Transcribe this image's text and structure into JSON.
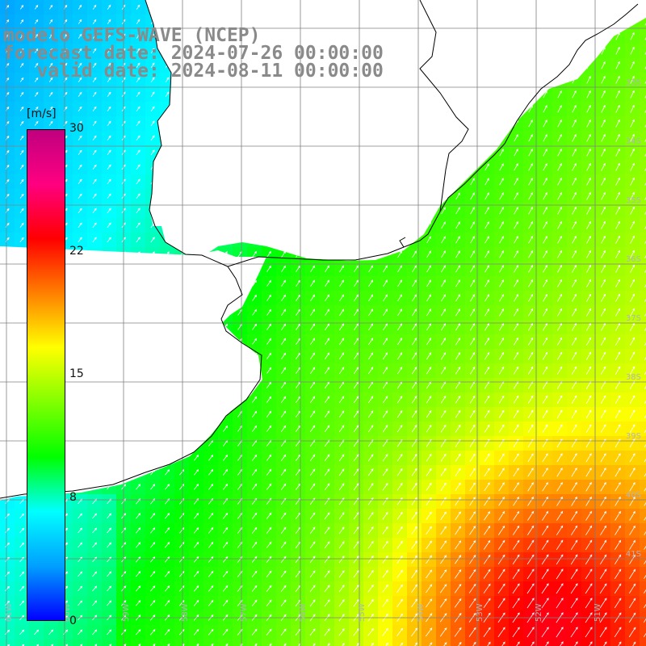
{
  "header": {
    "model_line": "modelo GEFS-WAVE (NCEP)",
    "forecast_line": "forecast date: 2024-07-26 00:00:00",
    "valid_line": "   valid date: 2024-08-11 00:00:00"
  },
  "colorbar": {
    "unit": "[m/s]",
    "ticks": [
      "30",
      "22",
      "15",
      "8",
      "0"
    ],
    "tick_values": [
      30,
      22,
      15,
      8,
      0
    ],
    "min": 0,
    "max": 30,
    "colors": [
      "#0000ff",
      "#00a0ff",
      "#00ffff",
      "#00ff00",
      "#80ff00",
      "#ffff00",
      "#ff8000",
      "#ff0000",
      "#ff0080",
      "#c0007f"
    ]
  },
  "map": {
    "variable": "wind speed and direction",
    "lat_labels": [
      "33S",
      "34S",
      "35S",
      "36S",
      "37S",
      "38S",
      "39S",
      "40S",
      "41S"
    ],
    "lon_labels": [
      "61W",
      "60W",
      "59W",
      "58W",
      "57W",
      "56W",
      "55W",
      "54W",
      "53W",
      "52W",
      "51W"
    ],
    "land_color": "#ffffff",
    "grid_color": "#808080",
    "coast_color": "#000000"
  }
}
